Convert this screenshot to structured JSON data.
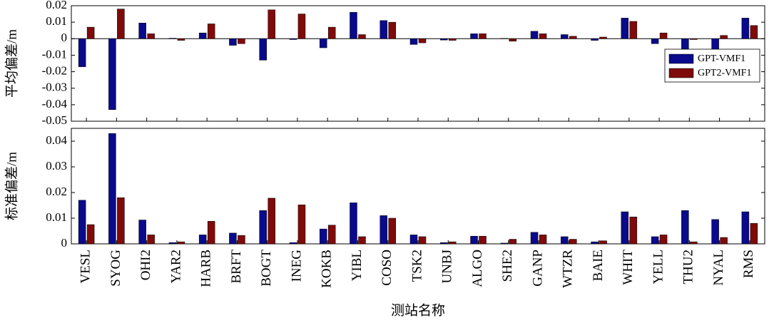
{
  "chart_data": [
    {
      "type": "bar",
      "y_label": "平均偏差/m",
      "ylim": [
        -0.05,
        0.02
      ],
      "yticks": [
        -0.05,
        -0.04,
        -0.03,
        -0.02,
        -0.01,
        0,
        0.01,
        0.02
      ],
      "legend_position": "center right",
      "series": [
        {
          "name": "GPT-VMF1",
          "color": "#0a0a8c",
          "values": [
            -0.017,
            -0.043,
            0.0095,
            0.0003,
            0.0035,
            -0.004,
            -0.013,
            -0.0005,
            -0.0055,
            0.016,
            0.011,
            -0.0035,
            -0.0008,
            0.003,
            0.0002,
            0.0045,
            0.0025,
            -0.001,
            0.0125,
            -0.003,
            -0.0135,
            -0.0095,
            0.0125
          ]
        },
        {
          "name": "GPT2-VMF1",
          "color": "#7f0a0a",
          "values": [
            0.007,
            0.018,
            0.003,
            -0.001,
            0.009,
            -0.003,
            0.0175,
            0.015,
            0.007,
            0.0025,
            0.01,
            -0.0025,
            -0.001,
            0.003,
            -0.0015,
            0.003,
            0.0015,
            0.001,
            0.0105,
            0.0035,
            -0.0005,
            0.002,
            0.008
          ]
        }
      ]
    },
    {
      "type": "bar",
      "y_label": "标准偏差/m",
      "x_label": "测站名称",
      "ylim": [
        0,
        0.045
      ],
      "yticks": [
        0,
        0.01,
        0.02,
        0.03,
        0.04
      ],
      "categories": [
        "VESL",
        "SYOG",
        "OHI2",
        "YAR2",
        "HARB",
        "BRFT",
        "BOGT",
        "INEG",
        "KOKB",
        "YIBL",
        "COSO",
        "TSK2",
        "UNBJ",
        "ALGO",
        "SHE2",
        "GANP",
        "WTZR",
        "BAIE",
        "WHIT",
        "YELL",
        "THU2",
        "NYAL",
        "RMS"
      ],
      "series": [
        {
          "color": "#0a0a8c",
          "values": [
            0.017,
            0.043,
            0.0093,
            0.0005,
            0.0035,
            0.0042,
            0.013,
            0.0005,
            0.0058,
            0.016,
            0.011,
            0.0035,
            0.0005,
            0.003,
            0.0003,
            0.0045,
            0.0028,
            0.0008,
            0.0125,
            0.0028,
            0.013,
            0.0095,
            0.0125
          ]
        },
        {
          "color": "#7f0a0a",
          "values": [
            0.0075,
            0.018,
            0.0035,
            0.0008,
            0.0088,
            0.0033,
            0.0178,
            0.0152,
            0.0073,
            0.0028,
            0.01,
            0.0028,
            0.0008,
            0.003,
            0.0018,
            0.0035,
            0.0018,
            0.0012,
            0.0105,
            0.0035,
            0.0008,
            0.0025,
            0.008
          ]
        }
      ]
    }
  ]
}
